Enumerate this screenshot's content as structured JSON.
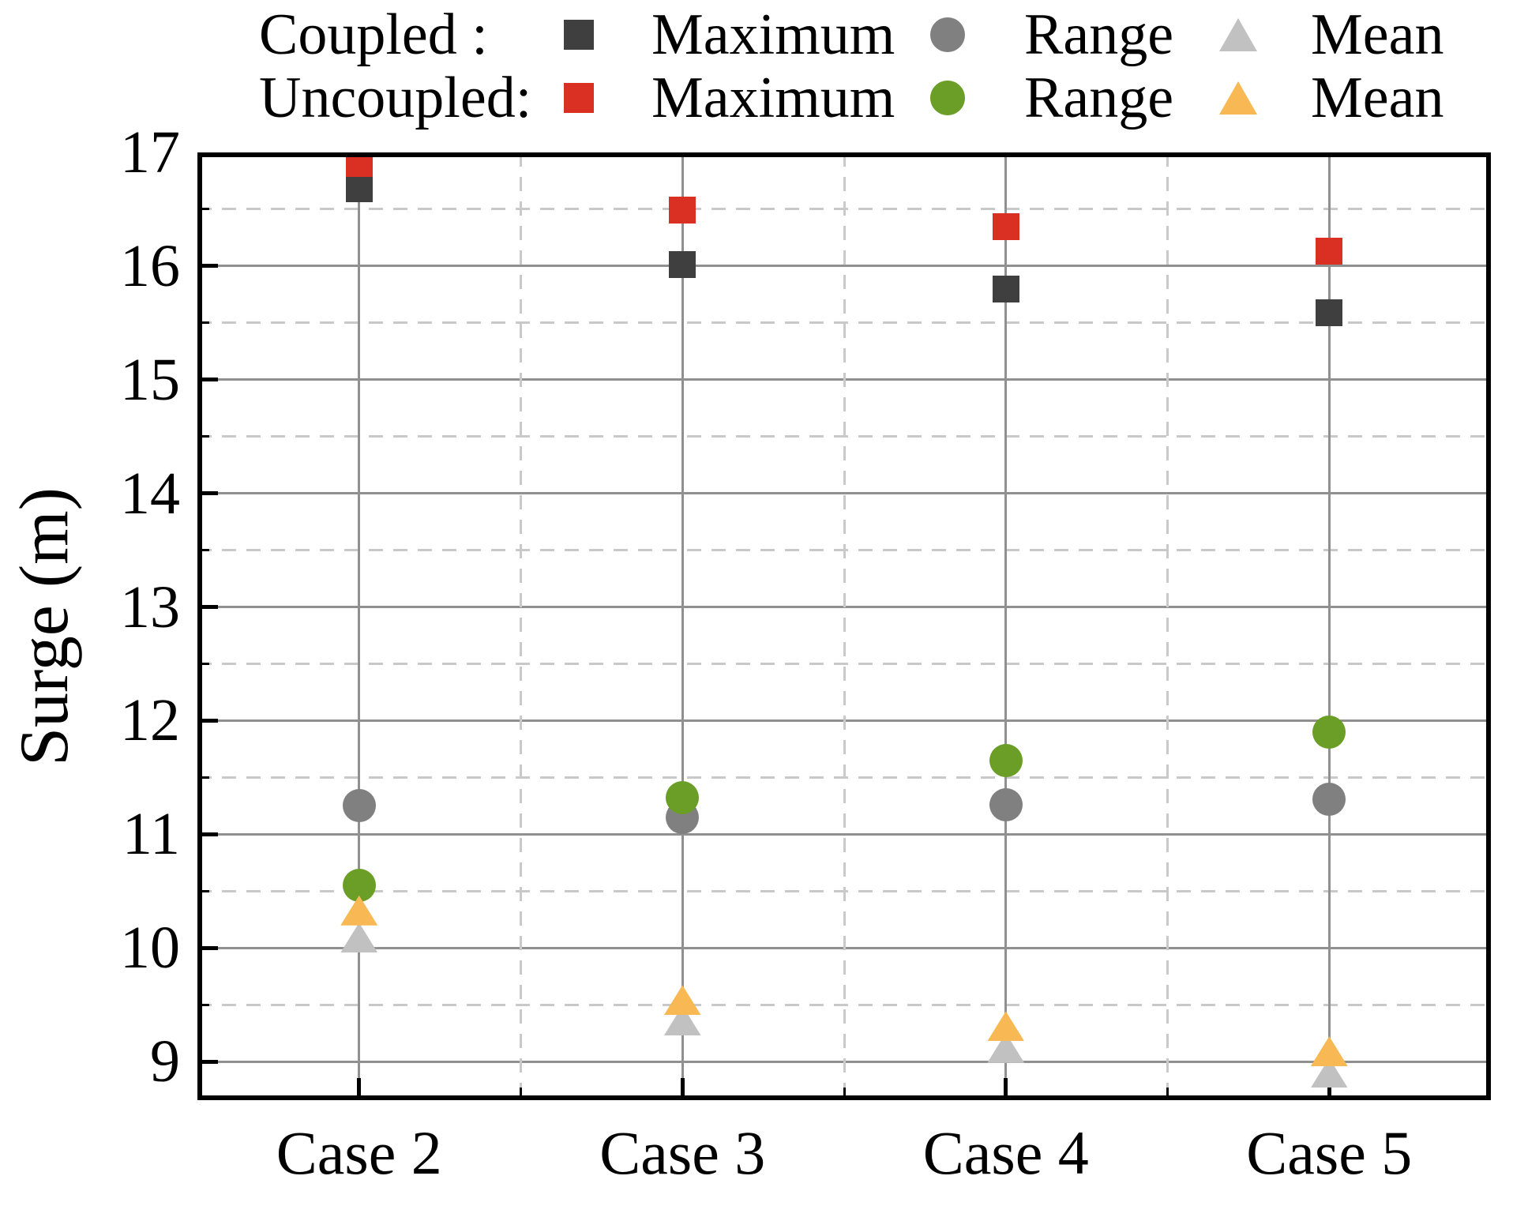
{
  "figure": {
    "y_axis_label": "Surge (m)"
  },
  "legend": {
    "rows": [
      {
        "label": "Coupled :",
        "items": [
          {
            "text": "Maximum",
            "series": "coupled_maximum"
          },
          {
            "text": "Range",
            "series": "coupled_range"
          },
          {
            "text": "Mean",
            "series": "coupled_mean"
          }
        ]
      },
      {
        "label": "Uncoupled:",
        "items": [
          {
            "text": "Maximum",
            "series": "uncoupled_maximum"
          },
          {
            "text": "Range",
            "series": "uncoupled_range"
          },
          {
            "text": "Mean",
            "series": "uncoupled_mean"
          }
        ]
      }
    ]
  },
  "colors": {
    "coupled_maximum": "#3f3f3f",
    "uncoupled_maximum": "#da2f23",
    "coupled_range": "#808080",
    "uncoupled_range": "#6a9e26",
    "coupled_mean": "#c1c1c1",
    "uncoupled_mean": "#f8b854",
    "grid_major": "#909090",
    "grid_minor": "#c9c9c9",
    "frame": "#000000"
  },
  "chart_data": {
    "type": "scatter",
    "title": "",
    "xlabel": "",
    "ylabel": "Surge (m)",
    "categories": [
      "Case 2",
      "Case 3",
      "Case 4",
      "Case 5"
    ],
    "ylim": [
      8.66,
      17
    ],
    "yticks_major": [
      9,
      10,
      11,
      12,
      13,
      14,
      15,
      16,
      17
    ],
    "yticks_minor": [
      9.5,
      10.5,
      11.5,
      12.5,
      13.5,
      14.5,
      15.5,
      16.5
    ],
    "grid": true,
    "legend_position": "top",
    "series": [
      {
        "key": "coupled_range",
        "name": "Coupled Range",
        "marker": "circle",
        "color": "#808080",
        "values": [
          11.25,
          11.15,
          11.26,
          11.31
        ]
      },
      {
        "key": "coupled_mean",
        "name": "Coupled Mean",
        "marker": "triangle",
        "color": "#c1c1c1",
        "values": [
          10.09,
          9.36,
          9.12,
          8.9
        ]
      },
      {
        "key": "coupled_maximum",
        "name": "Coupled Maximum",
        "marker": "square",
        "color": "#3f3f3f",
        "values": [
          16.68,
          16.01,
          15.8,
          15.59
        ]
      },
      {
        "key": "uncoupled_maximum",
        "name": "Uncoupled Maximum",
        "marker": "square",
        "color": "#da2f23",
        "values": [
          16.9,
          16.49,
          16.35,
          16.13
        ]
      },
      {
        "key": "uncoupled_range",
        "name": "Uncoupled Range",
        "marker": "circle",
        "color": "#6a9e26",
        "values": [
          10.55,
          11.32,
          11.65,
          11.9
        ]
      },
      {
        "key": "uncoupled_mean",
        "name": "Uncoupled Mean",
        "marker": "triangle",
        "color": "#f8b854",
        "values": [
          10.33,
          9.54,
          9.31,
          9.09
        ]
      }
    ]
  }
}
